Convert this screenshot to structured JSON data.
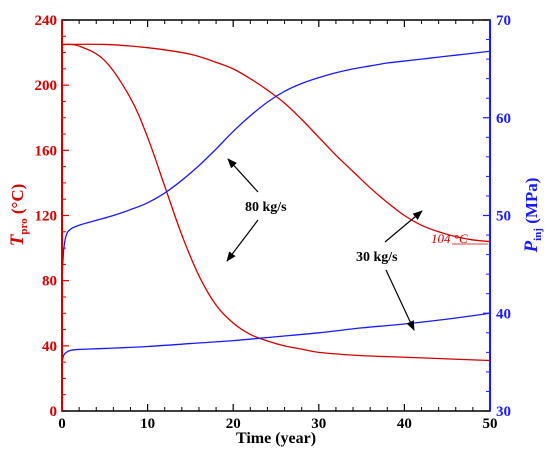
{
  "chart_data": {
    "type": "line",
    "colors": {
      "left": "#d40000",
      "right": "#1a1aff",
      "text": "#000000"
    },
    "xlabel": "Time (year)",
    "xlim": [
      0,
      50
    ],
    "xticks": [
      0,
      10,
      20,
      30,
      40,
      50
    ],
    "left_axis": {
      "label_main": "T",
      "label_sub": "pro",
      "label_unit": " (°C)",
      "ylim": [
        0,
        240
      ],
      "ticks": [
        0,
        40,
        80,
        120,
        160,
        200,
        240
      ]
    },
    "right_axis": {
      "label_main": "P",
      "label_sub": "inj",
      "label_unit": " (MPa)",
      "ylim": [
        30,
        70
      ],
      "ticks": [
        30,
        40,
        50,
        60,
        70
      ]
    },
    "series": [
      {
        "axis": "left",
        "color": "#d40000",
        "x": [
          0,
          2,
          5,
          8,
          10,
          12,
          14,
          16,
          18,
          20,
          22,
          24,
          26,
          28,
          30,
          35,
          40,
          45,
          50
        ],
        "y": [
          225,
          224,
          215,
          192,
          168,
          138,
          108,
          83,
          65,
          54,
          47,
          43,
          40,
          38,
          36,
          34,
          33,
          32,
          31
        ]
      },
      {
        "axis": "left",
        "color": "#d40000",
        "x": [
          0,
          5,
          10,
          15,
          18,
          20,
          22,
          24,
          26,
          28,
          30,
          32,
          34,
          36,
          38,
          40,
          42,
          44,
          46,
          48,
          50
        ],
        "y": [
          225,
          225,
          223,
          219,
          214,
          210,
          204,
          197,
          189,
          179,
          168,
          157,
          147,
          137,
          128,
          120,
          114,
          110,
          107,
          105,
          104
        ]
      },
      {
        "axis": "right",
        "color": "#1a1aff",
        "x": [
          0,
          0.2,
          0.5,
          1,
          2,
          4,
          6,
          8,
          10,
          12,
          14,
          16,
          18,
          20,
          22,
          24,
          26,
          28,
          30,
          32,
          34,
          36,
          38,
          40,
          42,
          44,
          46,
          48,
          50
        ],
        "y": [
          43.5,
          46.5,
          48.0,
          48.6,
          49.0,
          49.5,
          50.0,
          50.6,
          51.3,
          52.3,
          53.6,
          55.1,
          56.8,
          58.6,
          60.2,
          61.6,
          62.7,
          63.5,
          64.1,
          64.6,
          65.0,
          65.3,
          65.6,
          65.8,
          66.0,
          66.2,
          66.4,
          66.6,
          66.8
        ]
      },
      {
        "axis": "right",
        "color": "#1a1aff",
        "x": [
          0,
          0.2,
          0.5,
          1,
          2,
          5,
          10,
          15,
          20,
          25,
          30,
          35,
          40,
          45,
          50
        ],
        "y": [
          35.0,
          35.7,
          36.0,
          36.2,
          36.3,
          36.4,
          36.6,
          36.9,
          37.2,
          37.6,
          38.0,
          38.5,
          38.9,
          39.4,
          40.0
        ]
      }
    ],
    "annotations": {
      "label_80": "80 kg/s",
      "label_30": "30 kg/s",
      "label_104": "104 °C"
    }
  }
}
